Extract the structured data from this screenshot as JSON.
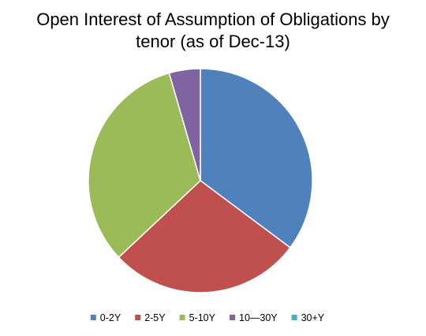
{
  "chart_data": {
    "type": "pie",
    "title_lines": [
      "Open Interest of Assumption of Obligations by",
      "tenor (as of Dec-13)"
    ],
    "categories": [
      "0-2Y",
      "2-5Y",
      "5-10Y",
      "10—30Y",
      "30+Y"
    ],
    "values": [
      35.2,
      27.8,
      32.5,
      4.5,
      0.0
    ],
    "value_unit": "percent",
    "colors": [
      "#4F81BD",
      "#C0504D",
      "#9BBB59",
      "#8064A2",
      "#4BACC6"
    ],
    "start_angle_deg": 0,
    "direction": "clockwise",
    "legend_position": "bottom"
  }
}
